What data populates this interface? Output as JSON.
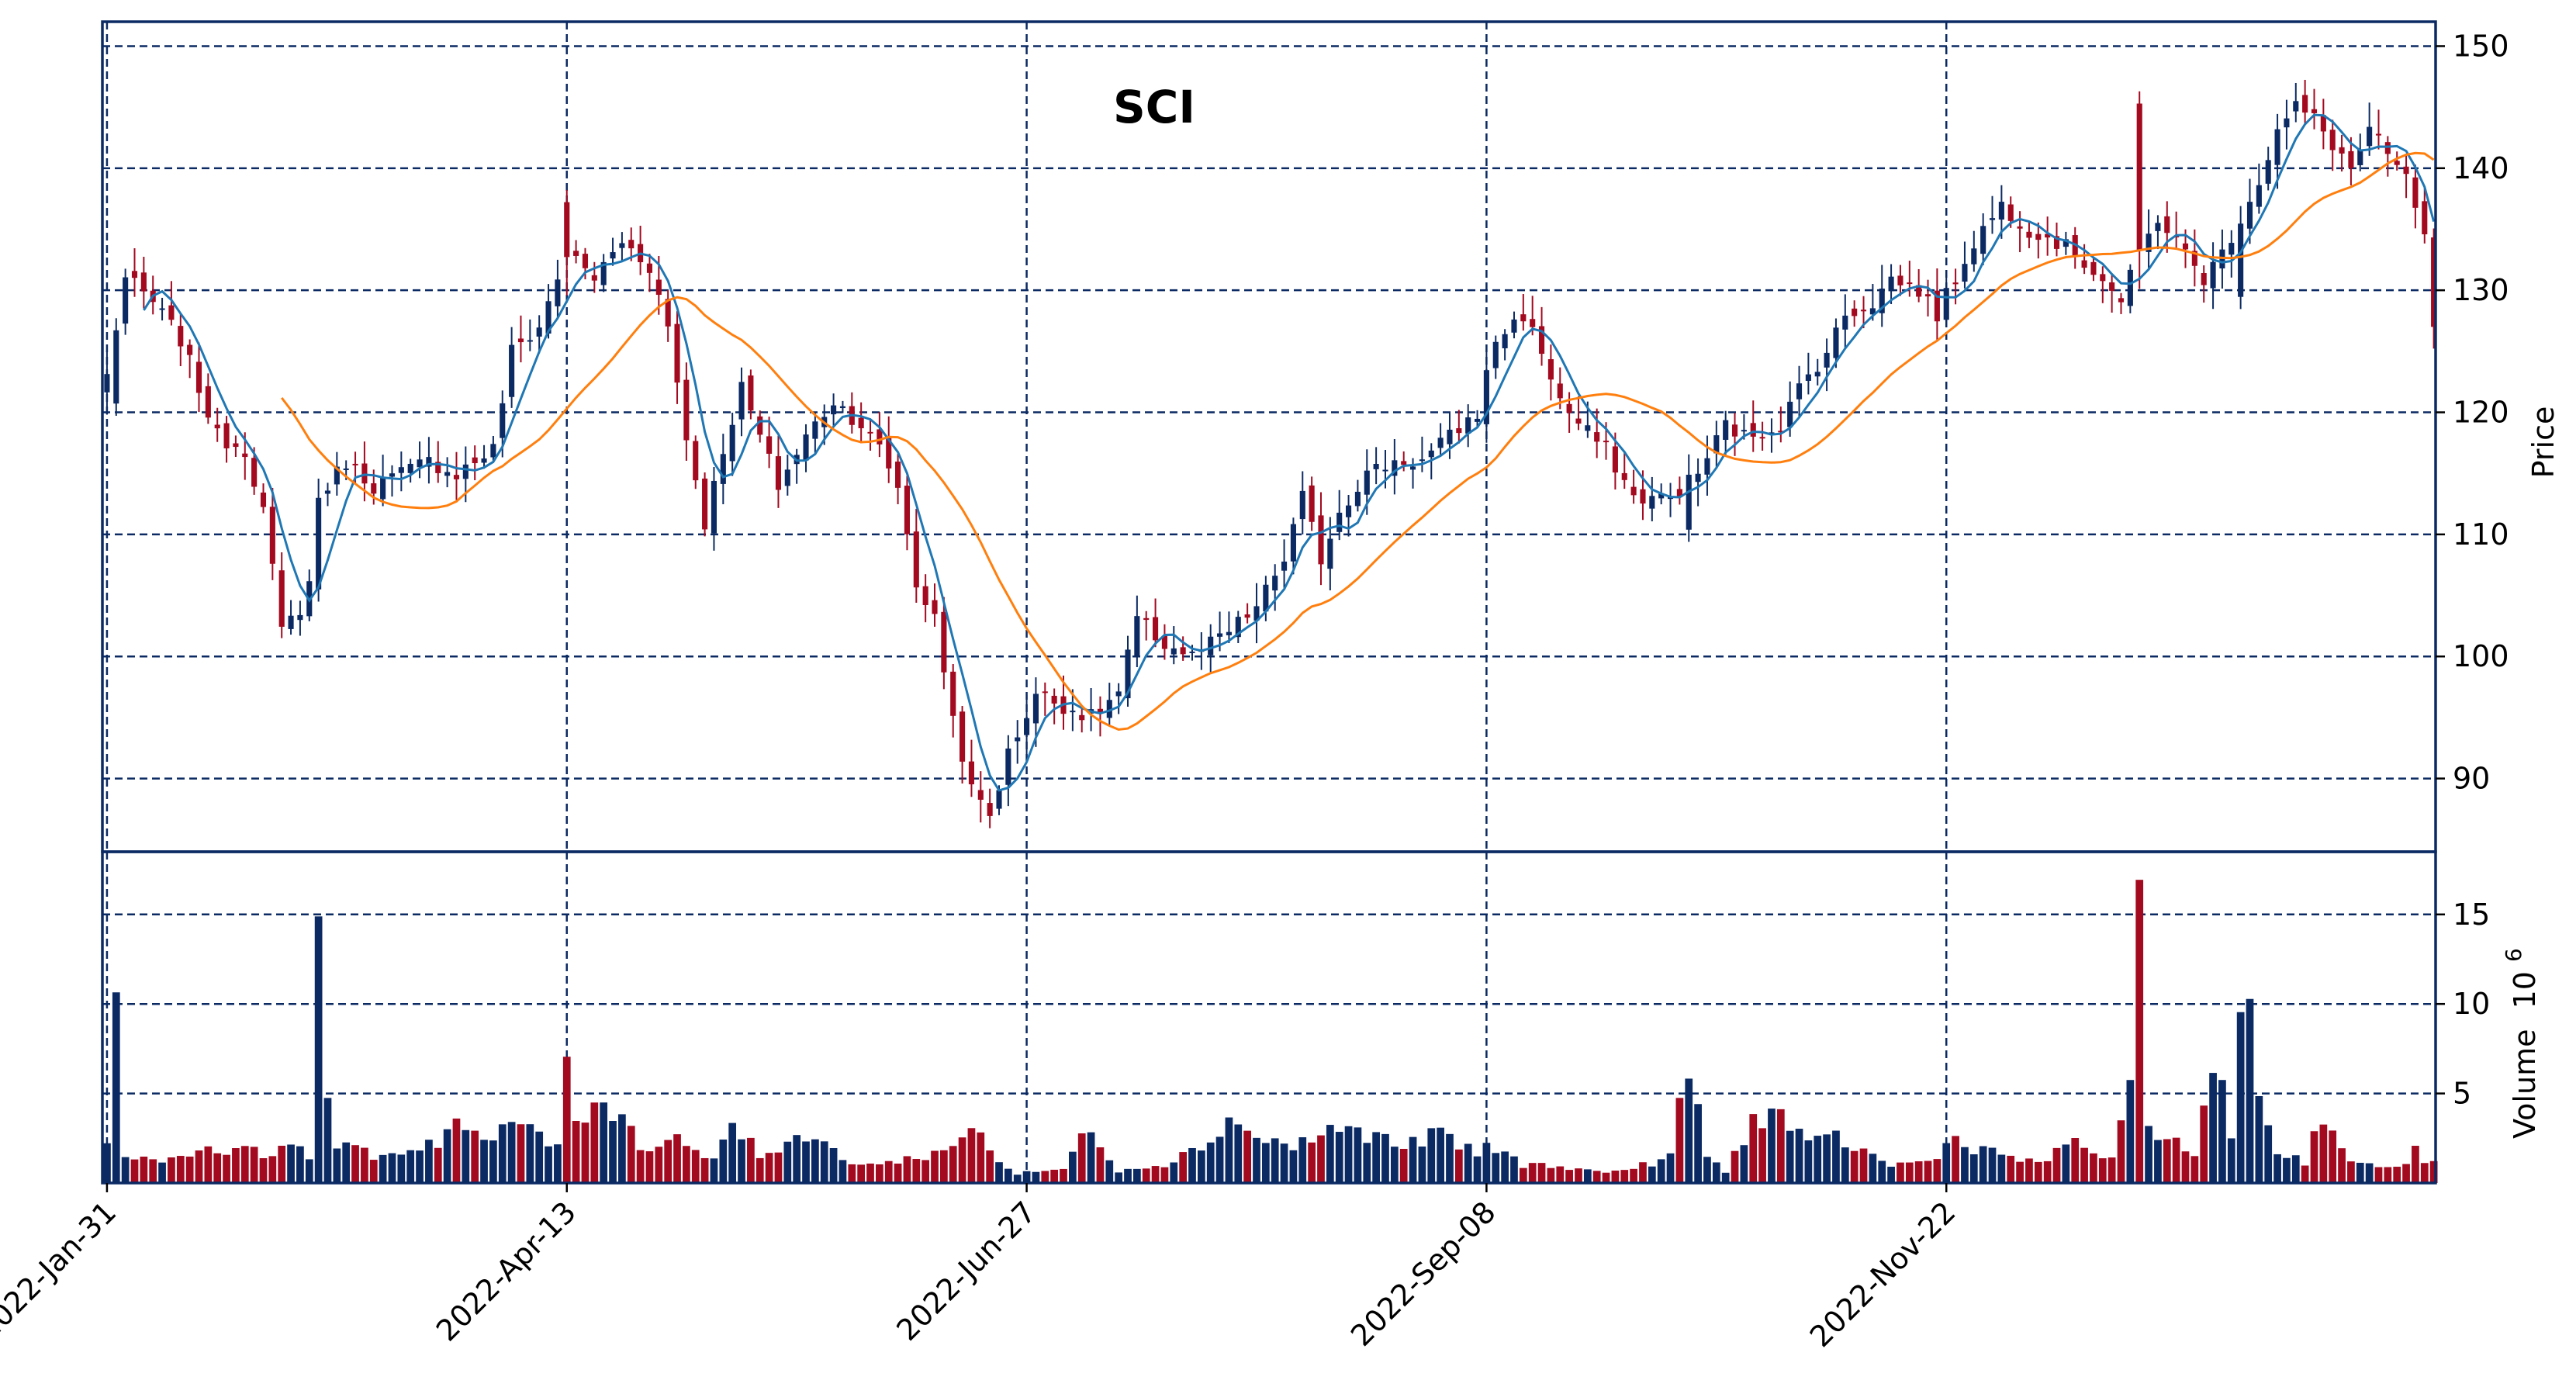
{
  "chart_data": {
    "type": "candlestick",
    "title": "SCI",
    "price_panel": {
      "ylabel": "Price",
      "ylim": [
        84,
        152
      ],
      "yticks": [
        90,
        100,
        110,
        120,
        130,
        140,
        150
      ],
      "grid": true
    },
    "volume_panel": {
      "ylabel": "Volume",
      "ylabel_exponent": "10",
      "ylabel_exponent_power": "6",
      "ylim": [
        0,
        18.5
      ],
      "yticks": [
        5,
        10,
        15
      ],
      "grid": true
    },
    "x_tick_labels": [
      "2022-Jan-31",
      "2022-Apr-13",
      "2022-Jun-27",
      "2022-Sep-08",
      "2022-Nov-22"
    ],
    "x_tick_indices": [
      0,
      50,
      100,
      150,
      200
    ],
    "colors": {
      "up": "#0b2a63",
      "down": "#a3091f",
      "ma_fast": "#1f77b4",
      "ma_slow": "#ff7f0e",
      "grid": "#0b2a63",
      "frame": "#0b2a63"
    },
    "moving_averages": [
      5,
      20
    ],
    "close_anchors": [
      [
        0,
        123
      ],
      [
        2,
        131
      ],
      [
        5,
        129
      ],
      [
        8,
        126
      ],
      [
        10,
        122
      ],
      [
        12,
        118
      ],
      [
        15,
        117
      ],
      [
        17,
        112
      ],
      [
        19,
        102
      ],
      [
        21,
        104
      ],
      [
        22,
        106
      ],
      [
        23,
        113
      ],
      [
        26,
        116
      ],
      [
        29,
        114
      ],
      [
        32,
        115
      ],
      [
        35,
        116
      ],
      [
        38,
        115
      ],
      [
        42,
        117
      ],
      [
        44,
        125
      ],
      [
        47,
        127
      ],
      [
        50,
        133
      ],
      [
        53,
        131
      ],
      [
        56,
        134
      ],
      [
        59,
        132
      ],
      [
        61,
        127
      ],
      [
        63,
        118
      ],
      [
        65,
        111
      ],
      [
        67,
        117
      ],
      [
        69,
        122
      ],
      [
        71,
        118
      ],
      [
        73,
        114
      ],
      [
        76,
        118
      ],
      [
        79,
        121
      ],
      [
        82,
        119
      ],
      [
        84,
        117
      ],
      [
        86,
        114
      ],
      [
        88,
        106
      ],
      [
        90,
        103
      ],
      [
        92,
        95
      ],
      [
        94,
        89
      ],
      [
        96,
        87
      ],
      [
        98,
        92
      ],
      [
        101,
        97
      ],
      [
        104,
        96
      ],
      [
        107,
        95
      ],
      [
        110,
        97
      ],
      [
        112,
        103
      ],
      [
        115,
        101
      ],
      [
        118,
        100
      ],
      [
        122,
        102
      ],
      [
        125,
        104
      ],
      [
        128,
        108
      ],
      [
        130,
        113
      ],
      [
        132,
        108
      ],
      [
        134,
        112
      ],
      [
        137,
        115
      ],
      [
        140,
        116
      ],
      [
        143,
        116
      ],
      [
        146,
        118
      ],
      [
        149,
        120
      ],
      [
        151,
        126
      ],
      [
        154,
        128
      ],
      [
        156,
        125
      ],
      [
        158,
        121
      ],
      [
        160,
        119
      ],
      [
        163,
        117
      ],
      [
        166,
        113
      ],
      [
        170,
        113
      ],
      [
        173,
        115
      ],
      [
        176,
        119
      ],
      [
        178,
        118
      ],
      [
        182,
        119
      ],
      [
        184,
        122
      ],
      [
        187,
        125
      ],
      [
        189,
        128
      ],
      [
        192,
        129
      ],
      [
        194,
        131
      ],
      [
        197,
        130
      ],
      [
        199,
        128
      ],
      [
        201,
        131
      ],
      [
        203,
        134
      ],
      [
        206,
        137
      ],
      [
        209,
        135
      ],
      [
        212,
        134
      ],
      [
        214,
        133
      ],
      [
        217,
        131
      ],
      [
        219,
        129
      ],
      [
        221,
        133
      ],
      [
        223,
        136
      ],
      [
        226,
        133
      ],
      [
        228,
        131
      ],
      [
        230,
        133
      ],
      [
        232,
        136
      ],
      [
        234,
        139
      ],
      [
        236,
        143
      ],
      [
        238,
        145
      ],
      [
        240,
        144
      ],
      [
        242,
        142
      ],
      [
        244,
        140
      ],
      [
        246,
        143
      ],
      [
        248,
        141
      ],
      [
        250,
        139
      ],
      [
        251,
        137
      ],
      [
        252,
        134
      ],
      [
        253,
        127
      ]
    ],
    "volume_anchors": [
      [
        0,
        2.5
      ],
      [
        1,
        12.5
      ],
      [
        2,
        1.8
      ],
      [
        3,
        1.2
      ],
      [
        8,
        1.5
      ],
      [
        11,
        2.0
      ],
      [
        18,
        1.6
      ],
      [
        19,
        2.6
      ],
      [
        22,
        1.3
      ],
      [
        23,
        16.0
      ],
      [
        24,
        5.8
      ],
      [
        25,
        2.0
      ],
      [
        30,
        1.5
      ],
      [
        36,
        2.4
      ],
      [
        38,
        3.5
      ],
      [
        41,
        2.2
      ],
      [
        44,
        3.1
      ],
      [
        46,
        3.4
      ],
      [
        49,
        1.8
      ],
      [
        50,
        7.8
      ],
      [
        51,
        3.0
      ],
      [
        53,
        5.0
      ],
      [
        56,
        3.8
      ],
      [
        58,
        2.0
      ],
      [
        62,
        2.6
      ],
      [
        66,
        1.2
      ],
      [
        68,
        3.8
      ],
      [
        71,
        1.5
      ],
      [
        77,
        2.6
      ],
      [
        80,
        1.3
      ],
      [
        84,
        1.0
      ],
      [
        92,
        1.9
      ],
      [
        94,
        3.5
      ],
      [
        97,
        1.2
      ],
      [
        99,
        0.5
      ],
      [
        104,
        0.8
      ],
      [
        107,
        3.2
      ],
      [
        110,
        0.7
      ],
      [
        115,
        1.1
      ],
      [
        119,
        2.0
      ],
      [
        122,
        3.6
      ],
      [
        125,
        2.6
      ],
      [
        129,
        2.0
      ],
      [
        133,
        3.0
      ],
      [
        137,
        2.8
      ],
      [
        141,
        2.0
      ],
      [
        145,
        2.8
      ],
      [
        149,
        1.5
      ],
      [
        150,
        2.2
      ],
      [
        154,
        1.0
      ],
      [
        158,
        1.0
      ],
      [
        162,
        0.6
      ],
      [
        166,
        0.8
      ],
      [
        170,
        1.5
      ],
      [
        172,
        6.5
      ],
      [
        174,
        1.5
      ],
      [
        176,
        0.6
      ],
      [
        179,
        3.6
      ],
      [
        182,
        3.9
      ],
      [
        185,
        2.0
      ],
      [
        188,
        2.6
      ],
      [
        190,
        2.0
      ],
      [
        194,
        1.0
      ],
      [
        198,
        1.2
      ],
      [
        201,
        2.5
      ],
      [
        203,
        2.0
      ],
      [
        207,
        1.5
      ],
      [
        210,
        1.0
      ],
      [
        214,
        2.4
      ],
      [
        218,
        1.2
      ],
      [
        220,
        4.8
      ],
      [
        221,
        17.8
      ],
      [
        222,
        3.5
      ],
      [
        224,
        2.5
      ],
      [
        227,
        1.5
      ],
      [
        229,
        5.8
      ],
      [
        230,
        6.3
      ],
      [
        231,
        2.6
      ],
      [
        232,
        11.0
      ],
      [
        233,
        9.5
      ],
      [
        234,
        4.8
      ],
      [
        236,
        1.8
      ],
      [
        239,
        1.2
      ],
      [
        241,
        4.0
      ],
      [
        244,
        1.2
      ],
      [
        247,
        0.8
      ],
      [
        250,
        1.2
      ],
      [
        251,
        1.8
      ],
      [
        252,
        1.0
      ],
      [
        253,
        1.2
      ]
    ],
    "spikes": [
      [
        1,
        1,
        2.0
      ],
      [
        23,
        1,
        2.5
      ],
      [
        50,
        -1,
        1.5
      ],
      [
        221,
        -1,
        4.0
      ],
      [
        232,
        1,
        2.0
      ],
      [
        172,
        1,
        1.5
      ]
    ]
  }
}
